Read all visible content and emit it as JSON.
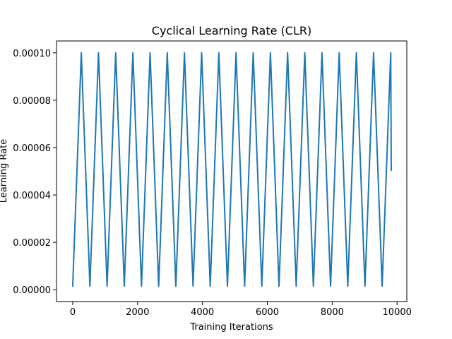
{
  "chart_data": {
    "type": "line",
    "title": "Cyclical Learning Rate (CLR)",
    "xlabel": "Training Iterations",
    "ylabel": "Learning Rate",
    "xlim": [
      -500,
      10300
    ],
    "ylim": [
      -5e-06,
      0.000105
    ],
    "xticks": [
      0,
      2000,
      4000,
      6000,
      8000,
      10000
    ],
    "xtick_labels": [
      "0",
      "2000",
      "4000",
      "6000",
      "8000",
      "10000"
    ],
    "yticks": [
      0,
      2e-05,
      4e-05,
      6e-05,
      8e-05,
      0.0001
    ],
    "ytick_labels": [
      "0.00000",
      "0.00002",
      "0.00004",
      "0.00006",
      "0.00008",
      "0.00010"
    ],
    "grid": false,
    "color": "#1f77b4",
    "series": [
      {
        "x": [
          0,
          265,
          530,
          795,
          1060,
          1325,
          1590,
          1855,
          2120,
          2385,
          2650,
          2915,
          3180,
          3445,
          3710,
          3975,
          4240,
          4505,
          4770,
          5035,
          5300,
          5565,
          5830,
          6095,
          6360,
          6625,
          6890,
          7155,
          7420,
          7685,
          7950,
          8215,
          8480,
          8745,
          9010,
          9275,
          9540,
          9805,
          9820
        ],
        "y": [
          1.5e-06,
          0.0001,
          1.5e-06,
          0.0001,
          1.5e-06,
          0.0001,
          1.5e-06,
          0.0001,
          1.5e-06,
          0.0001,
          1.5e-06,
          0.0001,
          1.5e-06,
          0.0001,
          1.5e-06,
          0.0001,
          1.5e-06,
          0.0001,
          1.5e-06,
          0.0001,
          1.5e-06,
          0.0001,
          1.5e-06,
          0.0001,
          1.5e-06,
          0.0001,
          1.5e-06,
          0.0001,
          1.5e-06,
          0.0001,
          1.5e-06,
          0.0001,
          1.5e-06,
          0.0001,
          1.5e-06,
          0.0001,
          1.5e-06,
          0.0001,
          5.05e-05
        ]
      }
    ]
  }
}
